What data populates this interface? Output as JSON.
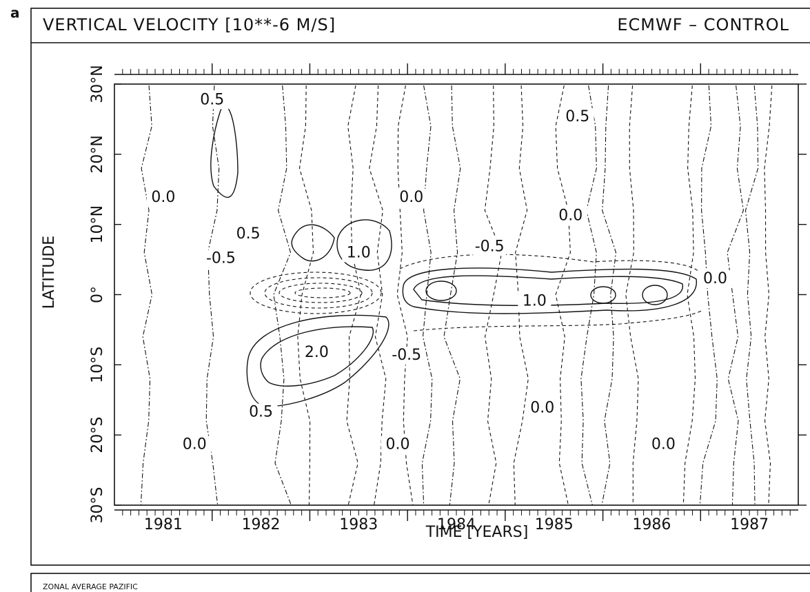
{
  "chart_data": {
    "type": "contour",
    "panel": "a",
    "title": "VERTICAL VELOCITY [10**-6 M/S]",
    "subtitle": "ECMWF – CONTROL",
    "footer": "ZONAL AVERAGE PAZIFIC",
    "xlabel": "TIME [YEARS]",
    "ylabel": "LATITUDE",
    "categories": [
      "1981",
      "1982",
      "1983",
      "1984",
      "1985",
      "1986",
      "1987"
    ],
    "xlim": [
      1981,
      1988
    ],
    "xticks": [
      1982,
      1983,
      1984,
      1985,
      1986,
      1987
    ],
    "ylim": [
      -30,
      30
    ],
    "yticks": [
      {
        "value": 30,
        "label": "30°N"
      },
      {
        "value": 20,
        "label": "20°N"
      },
      {
        "value": 10,
        "label": "10°N"
      },
      {
        "value": 0,
        "label": "0°"
      },
      {
        "value": -10,
        "label": "10°S"
      },
      {
        "value": -20,
        "label": "20°S"
      },
      {
        "value": -30,
        "label": "30°S"
      }
    ],
    "annotations": [
      {
        "text": "0.5",
        "x": 1982.0,
        "y": 27.7
      },
      {
        "text": "0.5",
        "x": 1985.74,
        "y": 25.3
      },
      {
        "text": "0.0",
        "x": 1981.5,
        "y": 13.8
      },
      {
        "text": "0.0",
        "x": 1984.04,
        "y": 13.8
      },
      {
        "text": "0.0",
        "x": 1985.67,
        "y": 11.2
      },
      {
        "text": "0.5",
        "x": 1982.37,
        "y": 8.6
      },
      {
        "text": "-0.5",
        "x": 1982.09,
        "y": 5.1
      },
      {
        "text": "1.0",
        "x": 1983.5,
        "y": 5.9
      },
      {
        "text": "-0.5",
        "x": 1984.84,
        "y": 6.8
      },
      {
        "text": "0.0",
        "x": 1987.15,
        "y": 2.2
      },
      {
        "text": "1.0",
        "x": 1985.3,
        "y": -1.0
      },
      {
        "text": "2.0",
        "x": 1983.07,
        "y": -8.3
      },
      {
        "text": "-0.5",
        "x": 1983.99,
        "y": -8.7
      },
      {
        "text": "0.5",
        "x": 1982.5,
        "y": -16.8
      },
      {
        "text": "0.0",
        "x": 1985.38,
        "y": -16.2
      },
      {
        "text": "0.0",
        "x": 1981.82,
        "y": -21.4
      },
      {
        "text": "0.0",
        "x": 1983.9,
        "y": -21.4
      },
      {
        "text": "0.0",
        "x": 1986.62,
        "y": -21.4
      }
    ]
  }
}
